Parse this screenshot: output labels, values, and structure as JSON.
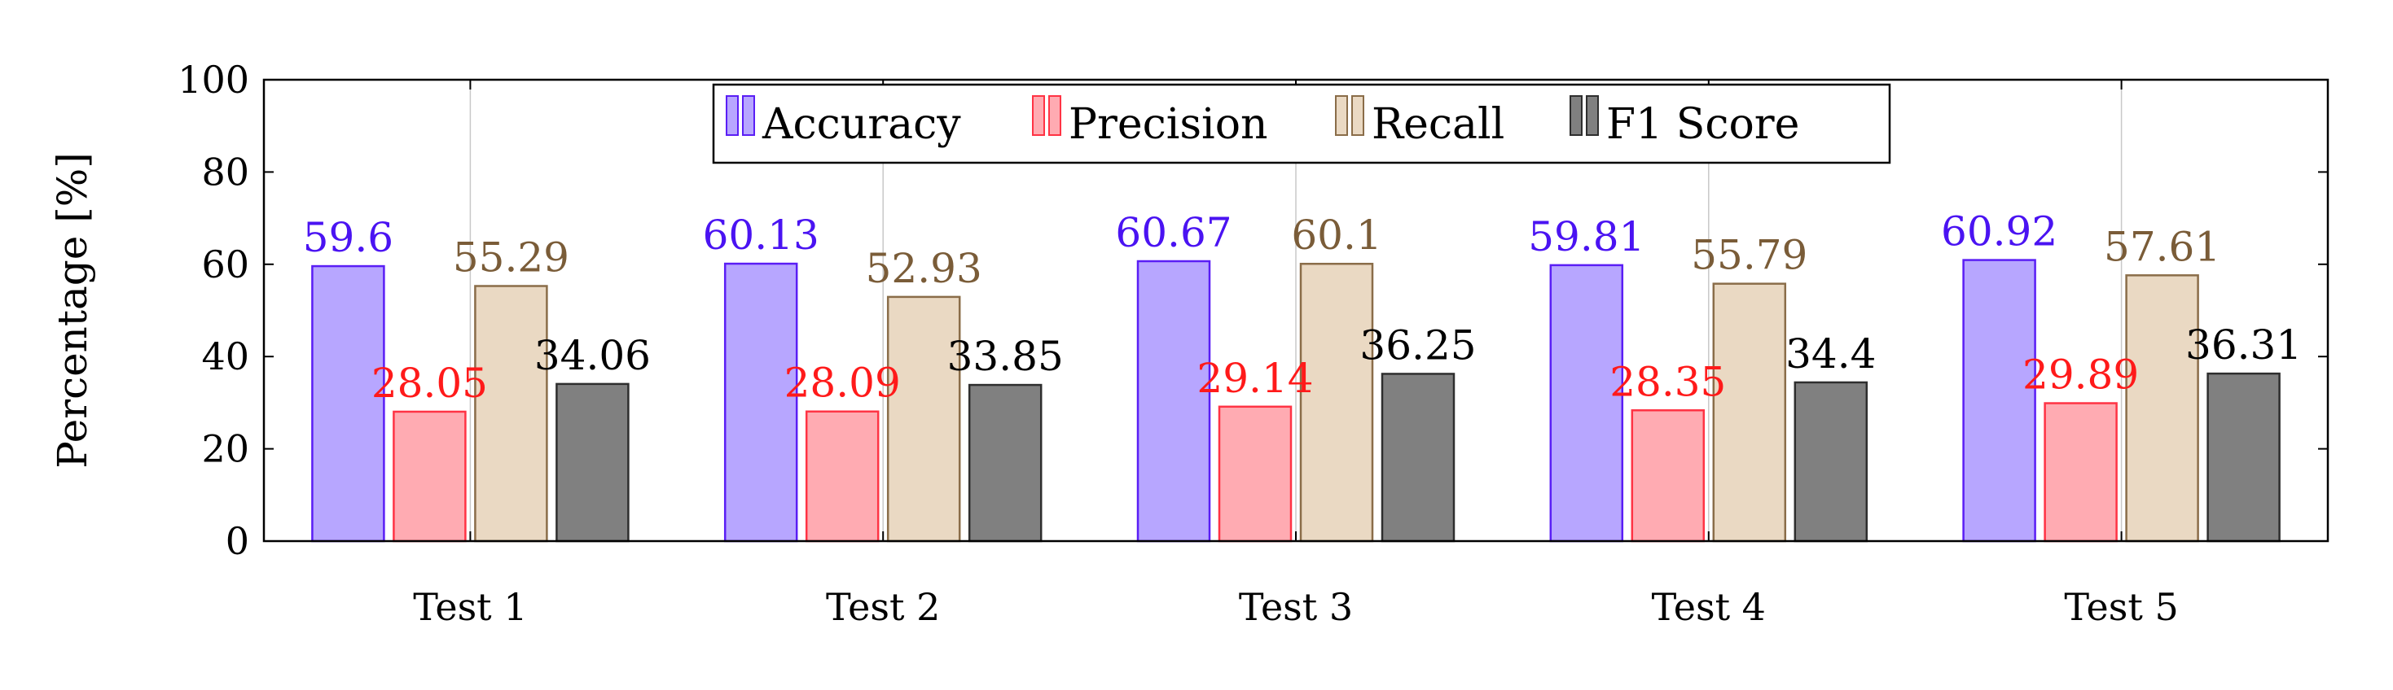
{
  "chart_data": {
    "type": "bar",
    "title": "",
    "xlabel": "",
    "ylabel": "Percentage [%]",
    "ylim": [
      0,
      100
    ],
    "yticks": [
      0,
      20,
      40,
      60,
      80,
      100
    ],
    "grid": "vertical at categories",
    "legend_position": "top-center, single row",
    "categories": [
      "Test 1",
      "Test 2",
      "Test 3",
      "Test 4",
      "Test 5"
    ],
    "series": [
      {
        "name": "Accuracy",
        "values": [
          59.6,
          60.13,
          60.67,
          59.81,
          60.92
        ],
        "fill": "#b7a6ff",
        "stroke": "#5a1ef5",
        "label_color": "#4a13f2",
        "labels": [
          "59.6",
          "60.13",
          "60.67",
          "59.81",
          "60.92"
        ]
      },
      {
        "name": "Precision",
        "values": [
          28.05,
          28.09,
          29.14,
          28.35,
          29.89
        ],
        "fill": "#ffabb2",
        "stroke": "#ff3344",
        "label_color": "#ff1a1a",
        "labels": [
          "28.05",
          "28.09",
          "29.14",
          "28.35",
          "29.89"
        ]
      },
      {
        "name": "Recall",
        "values": [
          55.29,
          52.93,
          60.1,
          55.79,
          57.61
        ],
        "fill": "#ead9c3",
        "stroke": "#8a6d49",
        "label_color": "#7a5c38",
        "labels": [
          "55.29",
          "52.93",
          "60.1",
          "55.79",
          "57.61"
        ]
      },
      {
        "name": "F1 Score",
        "values": [
          34.06,
          33.85,
          36.25,
          34.4,
          36.31
        ],
        "fill": "#808080",
        "stroke": "#2e2e2e",
        "label_color": "#000000",
        "labels": [
          "34.06",
          "33.85",
          "36.25",
          "34.4",
          "36.31"
        ]
      }
    ]
  }
}
